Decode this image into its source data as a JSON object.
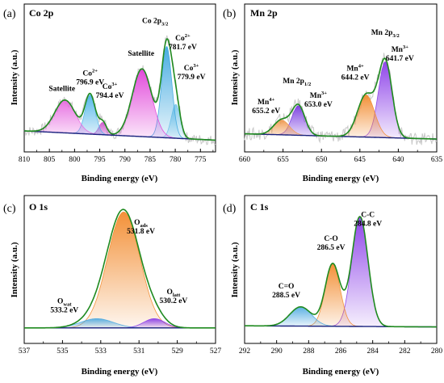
{
  "figure": {
    "panels": [
      {
        "letter": "(a)",
        "title": "Co 2p"
      },
      {
        "letter": "(b)",
        "title": "Mn 2p"
      },
      {
        "letter": "(c)",
        "title": "O 1s"
      },
      {
        "letter": "(d)",
        "title": "C 1s"
      }
    ]
  },
  "chart_data": [
    {
      "type": "line",
      "panel": "(a)",
      "title": "Co 2p",
      "xlabel": "Binding energy (eV)",
      "ylabel": "Intensity (a.u.)",
      "xlim": [
        810,
        772
      ],
      "x_reversed": true,
      "xticks": [
        810,
        805,
        800,
        795,
        790,
        785,
        780,
        775
      ],
      "raw_data": "noisy gray experimental spectrum",
      "background": "dark blue Shirley-type baseline, higher at high binding energy",
      "envelope": "green fitted envelope",
      "series": [
        {
          "name": "Co3+ 779.9 eV",
          "center": 779.9,
          "height": 0.33,
          "fwhm": 2.1,
          "color": "#7ec8ea"
        },
        {
          "name": "Co2+ 781.7 eV",
          "center": 781.7,
          "height": 0.89,
          "fwhm": 2.4,
          "color": "#3ea8e0"
        },
        {
          "name": "Satellite",
          "center": 786.6,
          "height": 0.66,
          "fwhm": 4.6,
          "color": "#e040d8"
        },
        {
          "name": "Co3+ 794.4 eV",
          "center": 794.4,
          "height": 0.12,
          "fwhm": 1.8,
          "color": "#cc55cc"
        },
        {
          "name": "Co2+ 796.9 eV",
          "center": 796.9,
          "height": 0.38,
          "fwhm": 2.4,
          "color": "#4eb4e8"
        },
        {
          "name": "Satellite",
          "center": 801.9,
          "height": 0.32,
          "fwhm": 4.8,
          "color": "#e66ae0"
        }
      ],
      "annotations": [
        {
          "parts": [
            [
              "Co",
              "n"
            ],
            [
              "2+",
              "sup"
            ]
          ],
          "value": "796.9 eV",
          "x": 796.9,
          "y": 0.65
        },
        {
          "parts": [
            [
              "Co",
              "n"
            ],
            [
              "3+",
              "sup"
            ]
          ],
          "value": "794.4 eV",
          "x": 793.0,
          "y": 0.52
        },
        {
          "parts": [
            [
              "Satellite",
              "n"
            ]
          ],
          "value": "",
          "x": 802.5,
          "y": 0.5
        },
        {
          "parts": [
            [
              "Satellite",
              "n"
            ]
          ],
          "value": "",
          "x": 786.8,
          "y": 0.84
        },
        {
          "parts": [
            [
              "Co 2p",
              "n"
            ],
            [
              "3/2",
              "sub"
            ]
          ],
          "value": "",
          "x": 784.0,
          "y": 1.16
        },
        {
          "parts": [
            [
              "Co",
              "n"
            ],
            [
              "2+",
              "sup"
            ]
          ],
          "value": "781.7 eV",
          "x": 778.5,
          "y": 0.99
        },
        {
          "parts": [
            [
              "Co",
              "n"
            ],
            [
              "3+",
              "sup"
            ]
          ],
          "value": "779.9 eV",
          "x": 776.8,
          "y": 0.7
        }
      ]
    },
    {
      "type": "line",
      "panel": "(b)",
      "title": "Mn 2p",
      "xlabel": "Binding energy (eV)",
      "ylabel": "Intensity (a.u.)",
      "xlim": [
        660,
        635
      ],
      "x_reversed": true,
      "xticks": [
        660,
        655,
        650,
        645,
        640,
        635
      ],
      "raw_data": "noisy gray experimental spectrum",
      "background": "dark blue Shirley-type baseline",
      "envelope": "green fitted envelope",
      "series": [
        {
          "name": "Mn3+ 641.7 eV",
          "center": 641.7,
          "height": 0.72,
          "fwhm": 2.1,
          "color": "#8a3de8"
        },
        {
          "name": "Mn4+ 644.2 eV",
          "center": 644.2,
          "height": 0.4,
          "fwhm": 2.6,
          "color": "#f28b2e"
        },
        {
          "name": "Mn3+ 653.0 eV",
          "center": 653.0,
          "height": 0.28,
          "fwhm": 2.0,
          "color": "#7a3de0"
        },
        {
          "name": "Mn4+ 655.2 eV",
          "center": 655.2,
          "height": 0.14,
          "fwhm": 2.4,
          "color": "#f09a50"
        }
      ],
      "annotations": [
        {
          "parts": [
            [
              "Mn 2p",
              "n"
            ],
            [
              "3/2",
              "sub"
            ]
          ],
          "value": "",
          "x": 641.7,
          "y": 1.02
        },
        {
          "parts": [
            [
              "Mn",
              "n"
            ],
            [
              "3+",
              "sup"
            ]
          ],
          "value": "641.7 eV",
          "x": 639.8,
          "y": 0.86
        },
        {
          "parts": [
            [
              "Mn",
              "n"
            ],
            [
              "4+",
              "sup"
            ]
          ],
          "value": "644.2 eV",
          "x": 645.6,
          "y": 0.68
        },
        {
          "parts": [
            [
              "Mn 2p",
              "n"
            ],
            [
              "1/2",
              "sub"
            ]
          ],
          "value": "",
          "x": 653.2,
          "y": 0.56
        },
        {
          "parts": [
            [
              "Mn",
              "n"
            ],
            [
              "3+",
              "sup"
            ]
          ],
          "value": "653.0 eV",
          "x": 650.4,
          "y": 0.42
        },
        {
          "parts": [
            [
              "Mn",
              "n"
            ],
            [
              "4+",
              "sup"
            ]
          ],
          "value": "655.2 eV",
          "x": 657.2,
          "y": 0.36
        }
      ]
    },
    {
      "type": "line",
      "panel": "(c)",
      "title": "O 1s",
      "xlabel": "Binding energy (eV)",
      "ylabel": "Intensity (a.u.)",
      "xlim": [
        537,
        527
      ],
      "x_reversed": true,
      "xticks": [
        537,
        535,
        533,
        531,
        529,
        527
      ],
      "background": "dark blue baseline",
      "envelope": "green fitted envelope",
      "series": [
        {
          "name": "Oads 531.8 eV",
          "center": 531.8,
          "height": 1.0,
          "fwhm": 2.0,
          "color": "#f28b2e"
        },
        {
          "name": "Owat 533.2 eV",
          "center": 533.2,
          "height": 0.08,
          "fwhm": 2.0,
          "color": "#4aa8e0"
        },
        {
          "name": "Olatt 530.2 eV",
          "center": 530.2,
          "height": 0.08,
          "fwhm": 1.3,
          "color": "#8a3de8"
        }
      ],
      "annotations": [
        {
          "parts": [
            [
              "O",
              "n"
            ],
            [
              "ads",
              "sub"
            ]
          ],
          "value": "531.8 eV",
          "x": 530.9,
          "y": 0.94
        },
        {
          "parts": [
            [
              "O",
              "n"
            ],
            [
              "wat",
              "sub"
            ]
          ],
          "value": "533.2 eV",
          "x": 534.9,
          "y": 0.26
        },
        {
          "parts": [
            [
              "O",
              "n"
            ],
            [
              "latt",
              "sub"
            ]
          ],
          "value": "530.2 eV",
          "x": 529.2,
          "y": 0.34
        }
      ]
    },
    {
      "type": "line",
      "panel": "(d)",
      "title": "C 1s",
      "xlabel": "Binding energy (eV)",
      "ylabel": "Intensity (a.u.)",
      "xlim": [
        292,
        280
      ],
      "x_reversed": true,
      "xticks": [
        292,
        290,
        288,
        286,
        284,
        282,
        280
      ],
      "background": "dark blue baseline",
      "envelope": "green fitted envelope",
      "series": [
        {
          "name": "C-C 284.8 eV",
          "center": 284.8,
          "height": 0.97,
          "fwhm": 1.2,
          "color": "#8a3de8"
        },
        {
          "name": "C-O 286.5 eV",
          "center": 286.5,
          "height": 0.55,
          "fwhm": 1.1,
          "color": "#f28b2e"
        },
        {
          "name": "C=O 288.5 eV",
          "center": 288.5,
          "height": 0.17,
          "fwhm": 1.6,
          "color": "#4aa8e0"
        }
      ],
      "annotations": [
        {
          "parts": [
            [
              "C-C",
              "n"
            ]
          ],
          "value": "284.8 eV",
          "x": 284.3,
          "y": 1.03
        },
        {
          "parts": [
            [
              "C-O",
              "n"
            ]
          ],
          "value": "286.5 eV",
          "x": 286.6,
          "y": 0.82
        },
        {
          "parts": [
            [
              "C=O",
              "n"
            ]
          ],
          "value": "288.5 eV",
          "x": 289.4,
          "y": 0.4
        }
      ]
    }
  ]
}
